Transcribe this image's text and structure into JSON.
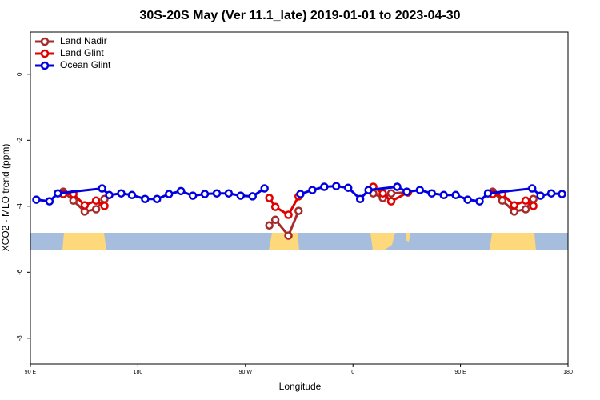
{
  "chart_data": {
    "type": "line",
    "title": "30S-20S May (Ver 11.1_late)   2019-01-01 to 2023-04-30",
    "x_label": "Longitude",
    "y_label": "XCO2 - MLO trend (ppm)",
    "xlim": [
      90,
      540
    ],
    "xticks": [
      {
        "value": 90,
        "label": "90 E"
      },
      180,
      {
        "value": 270,
        "label": "90 W"
      },
      {
        "value": 360,
        "label": "0"
      },
      {
        "value": 450,
        "label": "90 E"
      },
      {
        "value": 540,
        "label": "180"
      }
    ],
    "ylim": [
      -8.78,
      1.28
    ],
    "yticks": [
      0,
      -2,
      -4,
      -6,
      -8
    ],
    "legend": "top-left",
    "series": [
      {
        "name": "Land Nadir",
        "color": "#a52a2a",
        "x": [
          117.5,
          126,
          135.5,
          145,
          152,
          null,
          290,
          295,
          306,
          314.5,
          null,
          377,
          385,
          392,
          406,
          null,
          477,
          485,
          495,
          504.6,
          511
        ],
        "values": [
          -3.56,
          -3.83,
          -4.16,
          -4.09,
          -3.78,
          null,
          -4.58,
          -4.41,
          -4.89,
          -4.14,
          null,
          -3.61,
          -3.75,
          -3.61,
          -3.58,
          null,
          -3.56,
          -3.83,
          -4.16,
          -4.09,
          -3.78
        ]
      },
      {
        "name": "Land Glint",
        "color": "#e00000",
        "x": [
          117.5,
          126,
          135.5,
          145,
          152,
          null,
          290,
          295,
          306,
          314.5,
          null,
          377,
          385,
          392,
          406,
          null,
          477,
          485,
          495,
          504.6,
          511
        ],
        "values": [
          -3.63,
          -3.63,
          -3.97,
          -3.83,
          -3.99,
          null,
          -3.75,
          -4.02,
          -4.26,
          -3.7,
          null,
          -3.41,
          -3.61,
          -3.85,
          -3.58,
          null,
          -3.63,
          -3.63,
          -3.97,
          -3.83,
          -3.99
        ]
      },
      {
        "name": "Ocean Glint",
        "color": "#0000e0",
        "x": [
          95,
          106,
          113,
          150,
          156,
          166,
          175,
          186,
          196,
          206,
          216,
          226,
          236,
          246,
          256,
          266,
          276,
          286,
          null,
          316,
          326,
          336,
          346,
          356,
          366,
          373,
          397,
          405,
          416,
          426,
          436,
          446,
          456,
          466,
          473,
          510,
          517,
          526,
          535
        ],
        "values": [
          -3.8,
          -3.85,
          -3.61,
          -3.46,
          -3.66,
          -3.61,
          -3.66,
          -3.78,
          -3.78,
          -3.63,
          -3.54,
          -3.68,
          -3.63,
          -3.61,
          -3.61,
          -3.68,
          -3.7,
          -3.46,
          null,
          -3.63,
          -3.51,
          -3.41,
          -3.39,
          -3.44,
          -3.78,
          -3.51,
          -3.41,
          -3.56,
          -3.51,
          -3.61,
          -3.66,
          -3.66,
          -3.8,
          -3.85,
          -3.61,
          -3.46,
          -3.68,
          -3.61,
          -3.63
        ]
      }
    ]
  }
}
